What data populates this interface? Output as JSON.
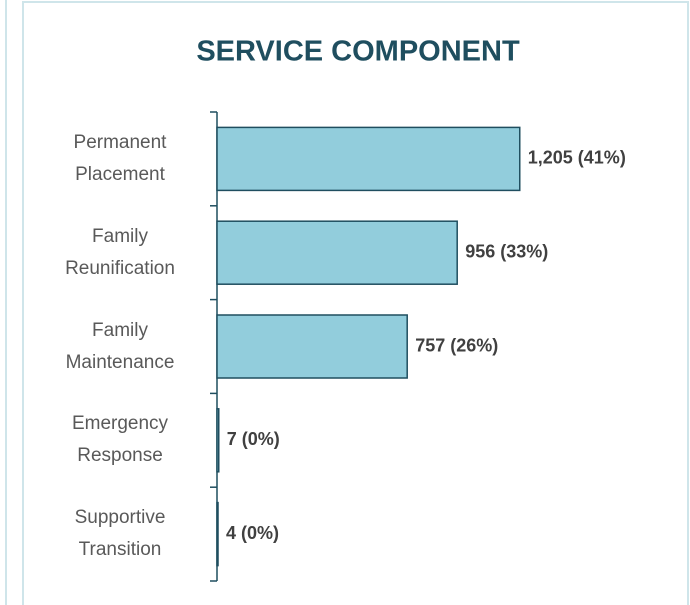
{
  "chart_data": {
    "type": "bar",
    "orientation": "horizontal",
    "title": "SERVICE COMPONENT",
    "categories": [
      "Permanent Placement",
      "Family Reunification",
      "Family Maintenance",
      "Emergency Response",
      "Supportive Transition"
    ],
    "values": [
      1205,
      956,
      757,
      7,
      4
    ],
    "value_labels": [
      "1,205 (41%)",
      "956 (33%)",
      "757 (26%)",
      "7 (0%)",
      "4 (0%)"
    ],
    "color": "#92cddc",
    "edge_color": "#1f4e5f",
    "xlim": [
      0,
      1600
    ]
  }
}
